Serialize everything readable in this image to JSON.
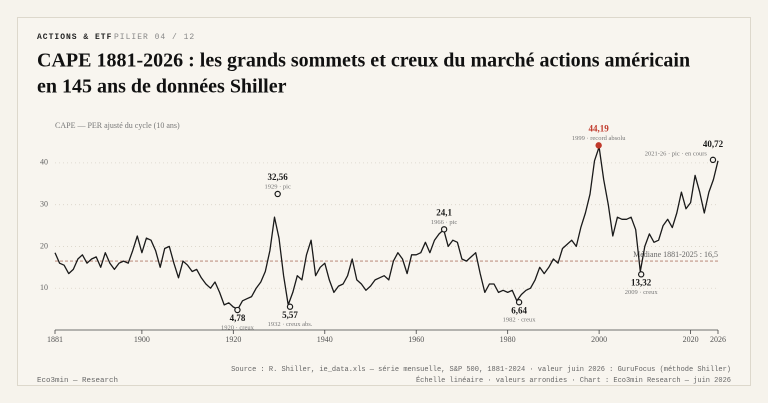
{
  "header": {
    "section": "ACTIONS & ETF",
    "pillar": "PILIER 04 / 12"
  },
  "chart_data": {
    "type": "line",
    "title": [
      "CAPE 1881-2026 : les grands sommets et creux du marché actions américain",
      "en 145 ans de données Shiller"
    ],
    "y_label": "CAPE — PER ajusté du cycle (10 ans)",
    "xlim": [
      1881,
      2026
    ],
    "xticks": [
      1881,
      1900,
      1920,
      1940,
      1960,
      1980,
      2000,
      2020,
      2026
    ],
    "ylim": [
      0,
      45
    ],
    "yticks": [
      10,
      20,
      30,
      40
    ],
    "grid": true,
    "series": [
      {
        "color": "#1a1a1a",
        "x": [
          1881,
          1882,
          1883,
          1884,
          1885,
          1886,
          1887,
          1888,
          1889,
          1890,
          1891,
          1892,
          1893,
          1894,
          1895,
          1896,
          1897,
          1898,
          1899,
          1900,
          1901,
          1902,
          1903,
          1904,
          1905,
          1906,
          1907,
          1908,
          1909,
          1910,
          1911,
          1912,
          1913,
          1914,
          1915,
          1916,
          1917,
          1918,
          1919,
          1920,
          1921,
          1922,
          1923,
          1924,
          1925,
          1926,
          1927,
          1928,
          1929,
          1930,
          1931,
          1932,
          1933,
          1934,
          1935,
          1936,
          1937,
          1938,
          1939,
          1940,
          1941,
          1942,
          1943,
          1944,
          1945,
          1946,
          1947,
          1948,
          1949,
          1950,
          1951,
          1952,
          1953,
          1954,
          1955,
          1956,
          1957,
          1958,
          1959,
          1960,
          1961,
          1962,
          1963,
          1964,
          1965,
          1966,
          1967,
          1968,
          1969,
          1970,
          1971,
          1972,
          1973,
          1974,
          1975,
          1976,
          1977,
          1978,
          1979,
          1980,
          1981,
          1982,
          1983,
          1984,
          1985,
          1986,
          1987,
          1988,
          1989,
          1990,
          1991,
          1992,
          1993,
          1994,
          1995,
          1996,
          1997,
          1998,
          1999,
          2000,
          2001,
          2002,
          2003,
          2004,
          2005,
          2006,
          2007,
          2008,
          2009,
          2010,
          2011,
          2012,
          2013,
          2014,
          2015,
          2016,
          2017,
          2018,
          2019,
          2020,
          2021,
          2022,
          2023,
          2024,
          2025,
          2026
        ],
        "values": [
          18.5,
          16,
          15.5,
          13.5,
          14.5,
          17,
          18,
          16,
          17,
          17.5,
          15,
          18.5,
          16,
          14.5,
          16,
          16.5,
          16,
          19,
          22.5,
          18.5,
          22,
          21.5,
          19,
          15,
          19.5,
          20,
          16,
          12.5,
          16.5,
          15.5,
          14,
          14.5,
          12.5,
          11,
          10,
          11.5,
          9,
          6,
          6.5,
          5.5,
          5,
          7,
          7.5,
          8,
          10,
          11.5,
          14,
          19,
          27,
          22,
          13,
          6,
          9,
          13,
          12,
          18,
          21.5,
          13,
          15,
          16,
          12,
          9,
          10.5,
          11,
          13,
          17,
          12,
          11,
          9.5,
          10.5,
          12,
          12.5,
          13,
          12,
          16.5,
          18.5,
          17,
          13.5,
          18,
          18,
          18.5,
          21,
          18.5,
          21.5,
          23,
          24,
          20,
          21.5,
          21,
          17,
          16.5,
          17.5,
          18.5,
          13.5,
          9,
          11,
          11,
          9,
          9.5,
          9,
          9.5,
          7,
          8.5,
          9.5,
          10,
          12,
          15,
          13.5,
          15,
          17,
          16,
          19.5,
          20.5,
          21.5,
          20,
          24.5,
          28,
          32.5,
          40.5,
          43.8,
          36,
          30,
          22.5,
          27,
          26.5,
          26.5,
          27,
          24,
          14,
          20,
          23,
          21,
          21.5,
          25,
          26.5,
          24.5,
          28,
          33,
          29,
          30.5,
          37,
          33,
          28,
          33,
          36,
          40.5
        ]
      }
    ],
    "median": {
      "value": 16.5,
      "label": "Médiane 1881-2025 : 16,5"
    },
    "annotations": [
      {
        "x": 1920.9,
        "value": 4.78,
        "value_label": "4,78",
        "note": "1920 · creux",
        "position": "below",
        "color": "#1a1a1a"
      },
      {
        "x": 1929.7,
        "value": 32.56,
        "value_label": "32,56",
        "note": "1929 · pic",
        "position": "above",
        "color": "#1a1a1a"
      },
      {
        "x": 1932.4,
        "value": 5.57,
        "value_label": "5,57",
        "note": "1932 · creux abs.",
        "position": "below",
        "color": "#1a1a1a"
      },
      {
        "x": 1966.1,
        "value": 24.1,
        "value_label": "24,1",
        "note": "1966 · pic",
        "position": "above",
        "color": "#1a1a1a"
      },
      {
        "x": 1982.5,
        "value": 6.64,
        "value_label": "6,64",
        "note": "1982 · creux",
        "position": "below",
        "color": "#1a1a1a"
      },
      {
        "x": 1999.9,
        "value": 44.19,
        "value_label": "44,19",
        "note": "1999 · record absolu",
        "position": "above",
        "color": "#c0392b"
      },
      {
        "x": 2009.2,
        "value": 13.32,
        "value_label": "13,32",
        "note": "2009 · creux",
        "position": "below",
        "color": "#1a1a1a"
      },
      {
        "x": 2024.9,
        "value": 40.72,
        "value_label": "40,72",
        "note": "2021-26 · pic · en cours",
        "position": "above-left",
        "color": "#1a1a1a"
      }
    ]
  },
  "footer": {
    "brand": "Eco3min — Research",
    "source": [
      "Source : R. Shiller, ie_data.xls — série mensuelle, S&P 500, 1881-2024 · valeur juin 2026 : GuruFocus (méthode Shiller)",
      "Échelle linéaire · valeurs arrondies · Chart : Eco3min Research — juin 2026"
    ]
  }
}
